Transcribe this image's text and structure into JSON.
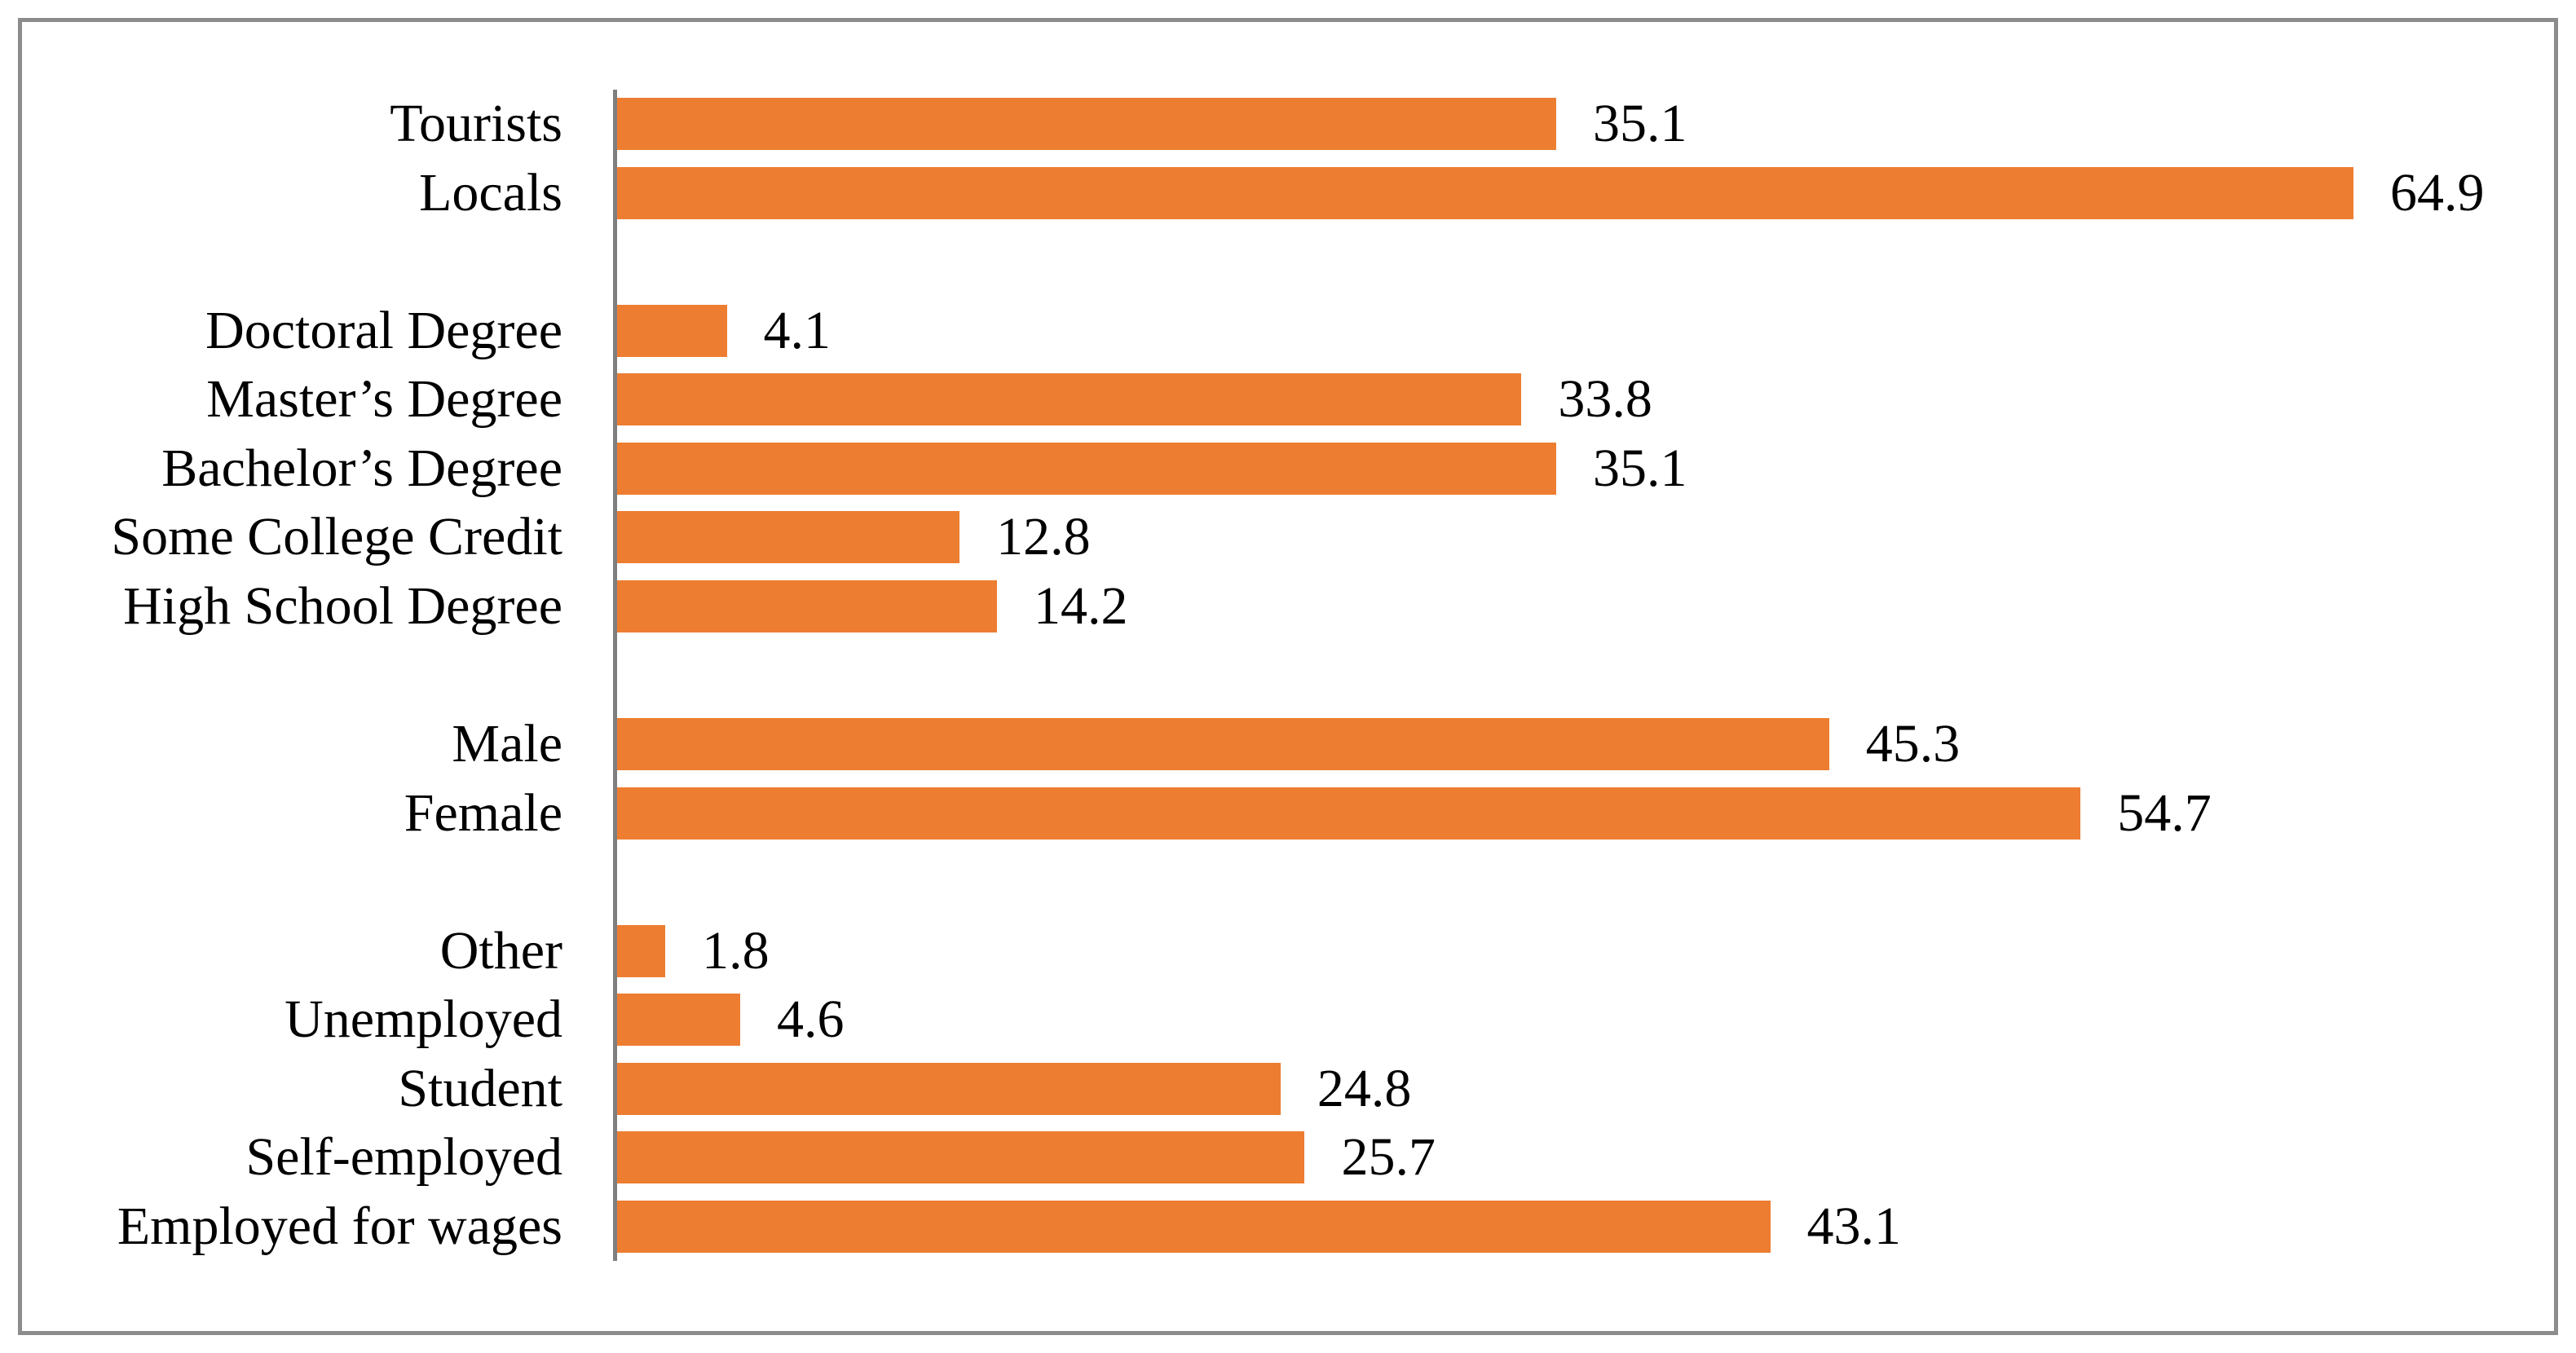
{
  "chart_data": {
    "type": "bar",
    "orientation": "horizontal",
    "title": "",
    "xlabel": "",
    "ylabel": "",
    "xlim": [
      0,
      72
    ],
    "grid": false,
    "legend_position": "none",
    "value_decimals": 1,
    "colors": {
      "bar": "#ED7D31",
      "axis_line": "#7F7F7F",
      "frame_border": "#8C8C8C",
      "text": "#000000",
      "background": "#FFFFFF"
    },
    "categories": [
      "Tourists",
      "Locals",
      "Doctoral Degree",
      "Master’s Degree",
      "Bachelor’s Degree",
      "Some College Credit",
      "High School Degree",
      "Male",
      "Female",
      "Other",
      "Unemployed",
      "Student",
      "Self-employed",
      "Employed for wages"
    ],
    "values": [
      35.1,
      64.9,
      4.1,
      33.8,
      35.1,
      12.8,
      14.2,
      45.3,
      54.7,
      1.8,
      4.6,
      24.8,
      25.7,
      43.1
    ],
    "rows": [
      {
        "label": "Tourists",
        "value": 35.1
      },
      {
        "label": "Locals",
        "value": 64.9
      },
      {
        "label": "",
        "value": null
      },
      {
        "label": "Doctoral Degree",
        "value": 4.1
      },
      {
        "label": "Master’s Degree",
        "value": 33.8
      },
      {
        "label": "Bachelor’s Degree",
        "value": 35.1
      },
      {
        "label": "Some College Credit",
        "value": 12.8
      },
      {
        "label": "High School Degree",
        "value": 14.2
      },
      {
        "label": "",
        "value": null
      },
      {
        "label": "Male",
        "value": 45.3
      },
      {
        "label": "Female",
        "value": 54.7
      },
      {
        "label": "",
        "value": null
      },
      {
        "label": "Other",
        "value": 1.8
      },
      {
        "label": "Unemployed",
        "value": 4.6
      },
      {
        "label": "Student",
        "value": 24.8
      },
      {
        "label": "Self-employed",
        "value": 25.7
      },
      {
        "label": "Employed for wages",
        "value": 43.1
      }
    ]
  }
}
